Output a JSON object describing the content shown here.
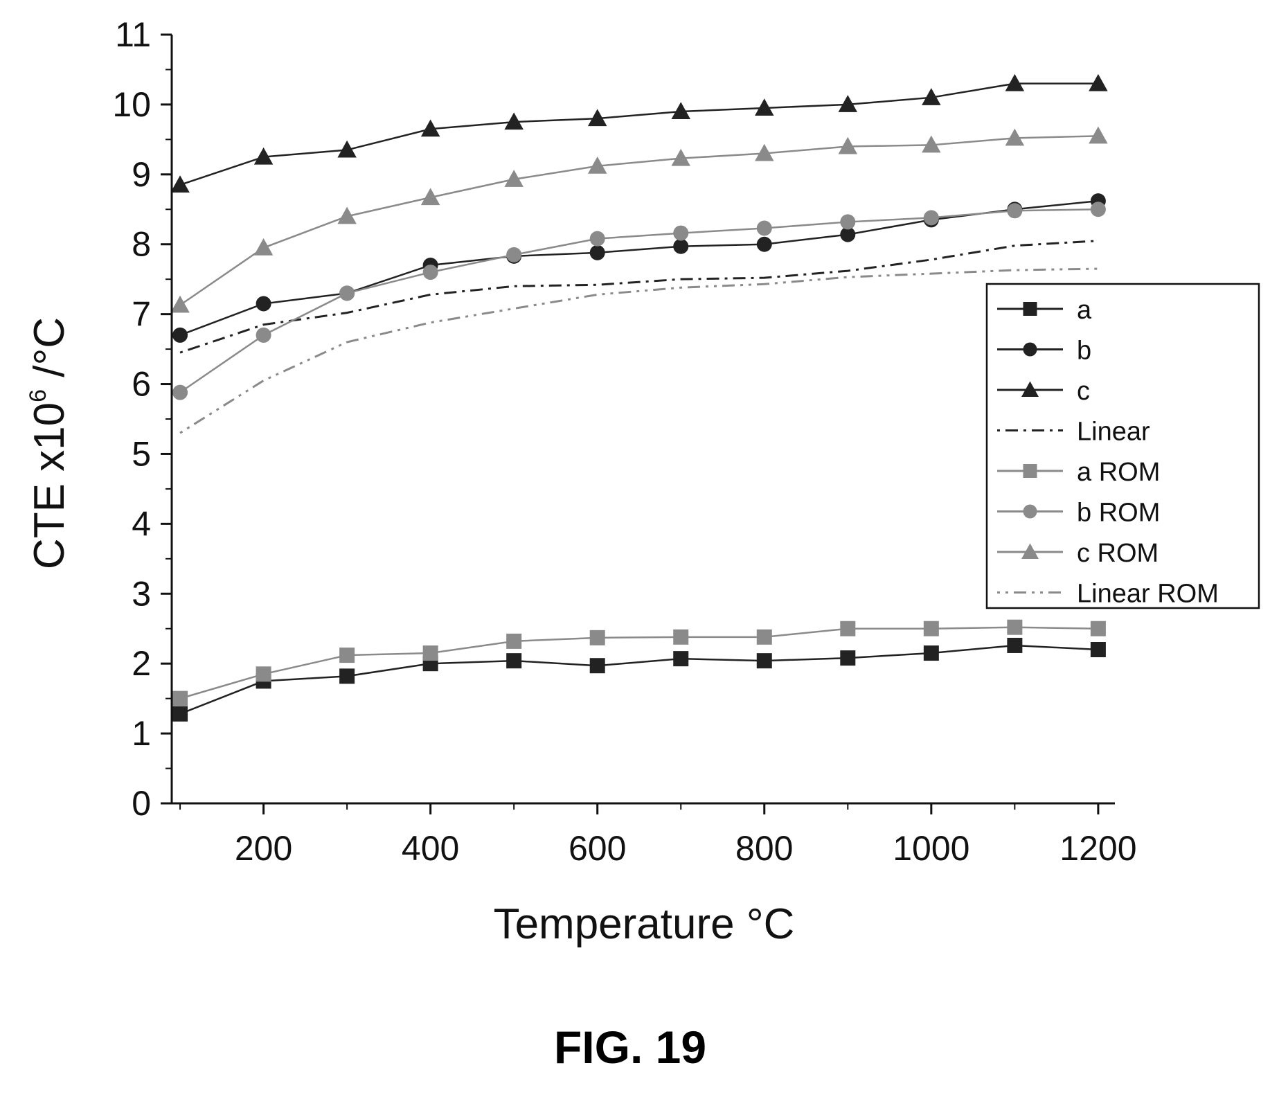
{
  "chart_data": {
    "type": "line",
    "xlabel": "Temperature °C",
    "ylabel_main": "CTE x10",
    "ylabel_sup": "6",
    "ylabel_tail": " /°C",
    "xlim": [
      90,
      1220
    ],
    "ylim": [
      0,
      11
    ],
    "xticks": [
      200,
      400,
      600,
      800,
      1000,
      1200
    ],
    "yticks": [
      0,
      1,
      2,
      3,
      4,
      5,
      6,
      7,
      8,
      9,
      10,
      11
    ],
    "grid": false,
    "legend_position": "right",
    "x": [
      100,
      200,
      300,
      400,
      500,
      600,
      700,
      800,
      900,
      1000,
      1100,
      1200
    ],
    "series": [
      {
        "name": "a",
        "marker": "square",
        "color": "#222222",
        "dash": "",
        "values": [
          1.28,
          1.75,
          1.82,
          2.0,
          2.04,
          1.97,
          2.07,
          2.04,
          2.08,
          2.15,
          2.26,
          2.2
        ]
      },
      {
        "name": "b",
        "marker": "circle",
        "color": "#222222",
        "dash": "",
        "values": [
          6.7,
          7.15,
          7.3,
          7.7,
          7.83,
          7.88,
          7.97,
          8.0,
          8.14,
          8.35,
          8.5,
          8.62
        ]
      },
      {
        "name": "c",
        "marker": "triangle",
        "color": "#222222",
        "dash": "",
        "values": [
          8.85,
          9.25,
          9.35,
          9.65,
          9.75,
          9.8,
          9.9,
          9.95,
          10.0,
          10.1,
          10.3,
          10.3
        ]
      },
      {
        "name": "Linear",
        "marker": "none",
        "color": "#222222",
        "dash": "4 8 18 8",
        "values": [
          6.45,
          6.85,
          7.02,
          7.28,
          7.4,
          7.42,
          7.5,
          7.52,
          7.62,
          7.78,
          7.98,
          8.05
        ]
      },
      {
        "name": "a ROM",
        "marker": "square",
        "color": "#8a8a8a",
        "dash": "",
        "values": [
          1.5,
          1.85,
          2.12,
          2.15,
          2.32,
          2.37,
          2.38,
          2.38,
          2.5,
          2.5,
          2.52,
          2.5
        ]
      },
      {
        "name": "b ROM",
        "marker": "circle",
        "color": "#8a8a8a",
        "dash": "",
        "values": [
          5.88,
          6.7,
          7.3,
          7.6,
          7.85,
          8.08,
          8.16,
          8.23,
          8.32,
          8.38,
          8.48,
          8.5
        ]
      },
      {
        "name": "c ROM",
        "marker": "triangle",
        "color": "#8a8a8a",
        "dash": "",
        "values": [
          7.13,
          7.95,
          8.4,
          8.67,
          8.93,
          9.12,
          9.23,
          9.3,
          9.4,
          9.42,
          9.52,
          9.55
        ]
      },
      {
        "name": "Linear ROM",
        "marker": "none",
        "color": "#8a8a8a",
        "dash": "4 8 4 8 18 8",
        "values": [
          5.3,
          6.05,
          6.6,
          6.88,
          7.08,
          7.28,
          7.38,
          7.43,
          7.53,
          7.58,
          7.63,
          7.65
        ]
      }
    ]
  },
  "caption": "FIG. 19"
}
